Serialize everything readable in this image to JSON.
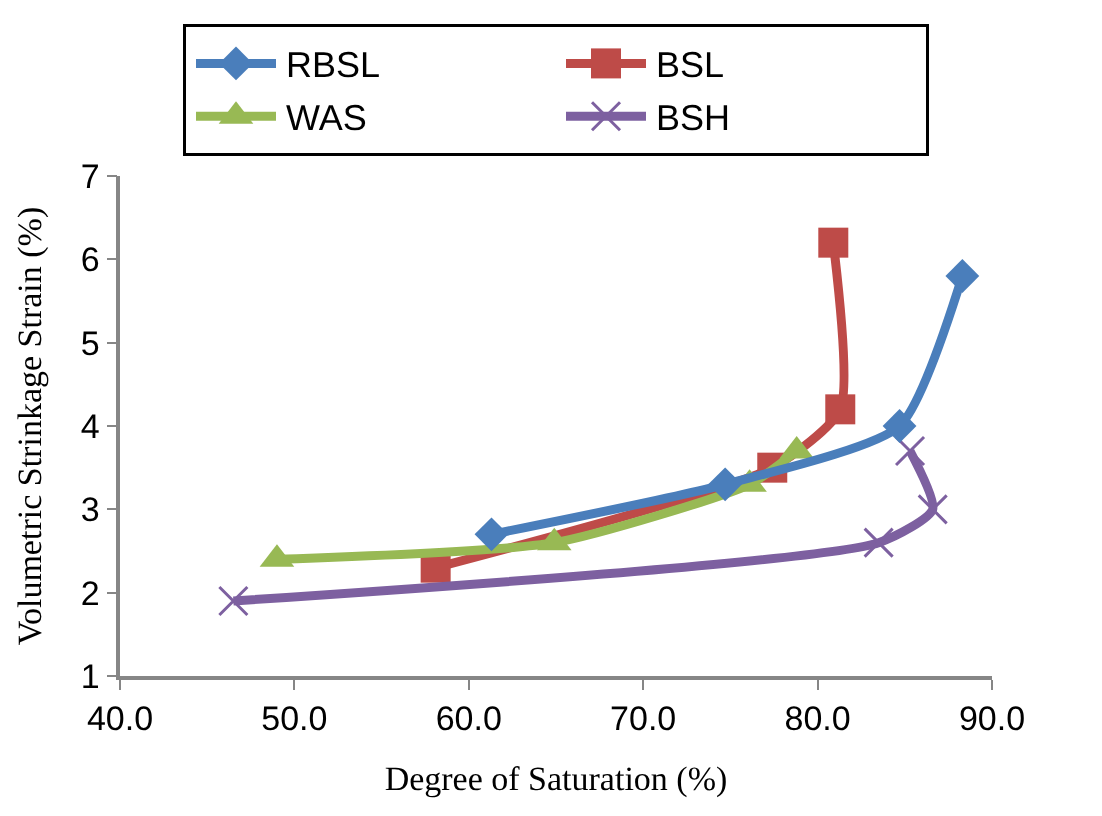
{
  "chart_data": {
    "type": "line",
    "xlabel": "Degree of Saturation (%)",
    "ylabel": "Volumetric Strinkage Strain (%)",
    "xlim": [
      40,
      90
    ],
    "xticks": [
      {
        "value": 40,
        "label": "40.0"
      },
      {
        "value": 50,
        "label": "50.0"
      },
      {
        "value": 60,
        "label": "60.0"
      },
      {
        "value": 70,
        "label": "70.0"
      },
      {
        "value": 80,
        "label": "80.0"
      },
      {
        "value": 90,
        "label": "90.0"
      }
    ],
    "ylim": [
      1,
      7
    ],
    "yticks": [
      1,
      2,
      3,
      4,
      5,
      6,
      7
    ],
    "legend": "top",
    "series": [
      {
        "name": "RBSL",
        "color": "#4a7ebb",
        "marker": "diamond",
        "x": [
          61.3,
          74.7,
          84.7,
          88.3
        ],
        "values": [
          2.7,
          3.3,
          4.0,
          5.8
        ]
      },
      {
        "name": "BSL",
        "color": "#be4b48",
        "marker": "square",
        "x": [
          58.1,
          77.4,
          81.3,
          80.9
        ],
        "values": [
          2.3,
          3.5,
          4.2,
          6.2
        ]
      },
      {
        "name": "WAS",
        "color": "#98b954",
        "marker": "triangle",
        "x": [
          49.0,
          64.9,
          76.1,
          78.8
        ],
        "values": [
          2.4,
          2.6,
          3.3,
          3.7
        ]
      },
      {
        "name": "BSH",
        "color": "#7d60a0",
        "marker": "cross",
        "x": [
          46.5,
          83.5,
          86.6,
          85.3
        ],
        "values": [
          1.9,
          2.6,
          3.0,
          3.7
        ]
      }
    ]
  }
}
